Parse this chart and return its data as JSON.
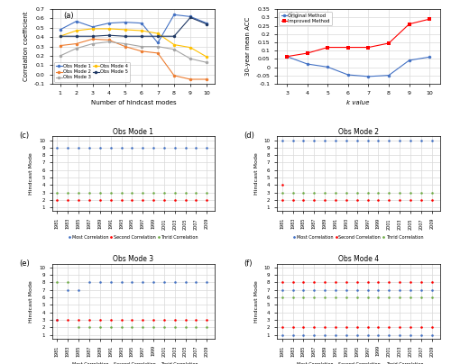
{
  "panel_a": {
    "title": "(a)",
    "xlabel": "Number of hindcast modes",
    "ylabel": "Correlation coefficient",
    "x": [
      1,
      2,
      3,
      4,
      5,
      6,
      7,
      8,
      9,
      10
    ],
    "mode1": [
      0.48,
      0.57,
      0.51,
      0.55,
      0.56,
      0.55,
      0.34,
      0.64,
      0.62,
      0.55
    ],
    "mode2": [
      0.31,
      0.33,
      0.38,
      0.37,
      0.3,
      0.25,
      0.23,
      -0.01,
      -0.05,
      -0.05
    ],
    "mode3": [
      0.2,
      0.28,
      0.33,
      0.35,
      0.33,
      0.3,
      0.3,
      0.27,
      0.17,
      0.13
    ],
    "mode4": [
      0.41,
      0.47,
      0.49,
      0.49,
      0.48,
      0.47,
      0.44,
      0.32,
      0.29,
      0.19
    ],
    "mode5": [
      0.41,
      0.41,
      0.41,
      0.42,
      0.41,
      0.41,
      0.41,
      0.41,
      0.61,
      0.54
    ],
    "colors": [
      "#4472C4",
      "#ED7D31",
      "#A5A5A5",
      "#FFC000",
      "#1F3864"
    ],
    "ylim": [
      -0.1,
      0.7
    ],
    "yticks": [
      -0.1,
      0.0,
      0.1,
      0.2,
      0.3,
      0.4,
      0.5,
      0.6,
      0.7
    ],
    "legend_labels": [
      "Obs Mode 1",
      "Obs Mode 2",
      "Obs Mode 3",
      "Obs Mode 4",
      "Obs Mode 5"
    ]
  },
  "panel_b": {
    "title": "(b)",
    "xlabel": "k value",
    "ylabel": "30-year mean ACC",
    "x": [
      3,
      4,
      5,
      6,
      7,
      8,
      9,
      10
    ],
    "original": [
      0.065,
      0.02,
      0.002,
      -0.045,
      -0.055,
      -0.048,
      0.042,
      0.062
    ],
    "improved": [
      0.065,
      0.085,
      0.12,
      0.12,
      0.12,
      0.145,
      0.26,
      0.29
    ],
    "colors": [
      "#4472C4",
      "#FF0000"
    ],
    "ylim": [
      -0.1,
      0.35
    ],
    "yticks": [
      -0.1,
      -0.05,
      0.0,
      0.05,
      0.1,
      0.15,
      0.2,
      0.25,
      0.3,
      0.35
    ],
    "ytick_labels": [
      "-0.1",
      "-0.05",
      "0",
      "0.05",
      "0.1",
      "0.15",
      "0.2",
      "0.25",
      "0.3",
      "0.35"
    ],
    "legend_labels": [
      "Original Method",
      "Improved Method"
    ]
  },
  "panel_c": {
    "title": "Obs Mode 1",
    "subtitle": "(c)",
    "years": [
      1981,
      1983,
      1985,
      1987,
      1989,
      1991,
      1993,
      1995,
      1997,
      1999,
      2001,
      2003,
      2005,
      2007,
      2009
    ],
    "most": [
      9,
      9,
      9,
      9,
      9,
      9,
      9,
      9,
      9,
      9,
      9,
      9,
      9,
      9,
      9
    ],
    "second": [
      2,
      2,
      2,
      2,
      2,
      2,
      2,
      2,
      2,
      2,
      2,
      2,
      2,
      2,
      2
    ],
    "third": [
      3,
      3,
      3,
      3,
      3,
      3,
      3,
      3,
      3,
      3,
      3,
      3,
      3,
      3,
      3
    ],
    "ylim": [
      1,
      10
    ],
    "yticks": [
      1,
      2,
      3,
      4,
      5,
      6,
      7,
      8,
      9,
      10
    ]
  },
  "panel_d": {
    "title": "Obs Mode 2",
    "subtitle": "(d)",
    "years": [
      1981,
      1983,
      1985,
      1987,
      1989,
      1991,
      1993,
      1995,
      1997,
      1999,
      2001,
      2003,
      2005,
      2007,
      2009
    ],
    "most": [
      10,
      10,
      10,
      10,
      10,
      10,
      10,
      10,
      10,
      10,
      10,
      10,
      10,
      10,
      10
    ],
    "second": [
      2,
      2,
      2,
      2,
      2,
      2,
      2,
      2,
      2,
      2,
      2,
      2,
      2,
      2,
      2
    ],
    "third": [
      3,
      3,
      3,
      3,
      3,
      3,
      3,
      3,
      3,
      3,
      3,
      3,
      3,
      3,
      3
    ],
    "extra_second": [
      4
    ],
    "extra_second_year": [
      1981
    ],
    "ylim": [
      1,
      10
    ],
    "yticks": [
      1,
      2,
      3,
      4,
      5,
      6,
      7,
      8,
      9,
      10
    ]
  },
  "panel_e": {
    "title": "Obs Mode 3",
    "subtitle": "(e)",
    "years": [
      1981,
      1983,
      1985,
      1987,
      1989,
      1991,
      1993,
      1995,
      1997,
      1999,
      2001,
      2003,
      2005,
      2007,
      2009
    ],
    "most": [
      3,
      7,
      7,
      8,
      8,
      8,
      8,
      8,
      8,
      8,
      8,
      8,
      8,
      8,
      8
    ],
    "second": [
      3,
      3,
      3,
      3,
      3,
      3,
      3,
      3,
      3,
      3,
      3,
      3,
      3,
      3,
      3
    ],
    "third": [
      8,
      8,
      2,
      2,
      2,
      2,
      2,
      2,
      2,
      2,
      2,
      2,
      2,
      2,
      2
    ],
    "ylim": [
      1,
      10
    ],
    "yticks": [
      1,
      2,
      3,
      4,
      5,
      6,
      7,
      8,
      9,
      10
    ]
  },
  "panel_f": {
    "title": "Obs Mode 4",
    "subtitle": "(f)",
    "years": [
      1981,
      1983,
      1985,
      1987,
      1989,
      1991,
      1993,
      1995,
      1997,
      1999,
      2001,
      2003,
      2005,
      2007,
      2009
    ],
    "most": [
      7,
      7,
      7,
      7,
      7,
      7,
      7,
      7,
      7,
      7,
      7,
      7,
      7,
      7,
      7
    ],
    "second": [
      8,
      8,
      8,
      8,
      8,
      8,
      8,
      8,
      8,
      8,
      8,
      8,
      8,
      8,
      8
    ],
    "third": [
      6,
      6,
      6,
      6,
      6,
      6,
      7,
      7,
      7,
      7,
      7,
      7,
      7,
      7,
      7
    ],
    "most_special": [
      1,
      1,
      1,
      1,
      1,
      1,
      1,
      1,
      1,
      1,
      1,
      1,
      1,
      1,
      1
    ],
    "second_special": [
      2,
      2,
      2,
      2,
      2,
      2,
      2,
      2,
      2,
      2,
      2,
      2,
      2,
      2,
      2
    ],
    "third_special": [
      6,
      6,
      6,
      6,
      6,
      6,
      6,
      6,
      6,
      6,
      6,
      6,
      6,
      6,
      6
    ],
    "ylim": [
      1,
      10
    ],
    "yticks": [
      1,
      2,
      3,
      4,
      5,
      6,
      7,
      8,
      9,
      10
    ]
  },
  "dot_colors": {
    "most": "#4472C4",
    "second": "#FF0000",
    "third": "#70AD47"
  },
  "background_color": "#FFFFFF",
  "grid_color": "#D9D9D9"
}
